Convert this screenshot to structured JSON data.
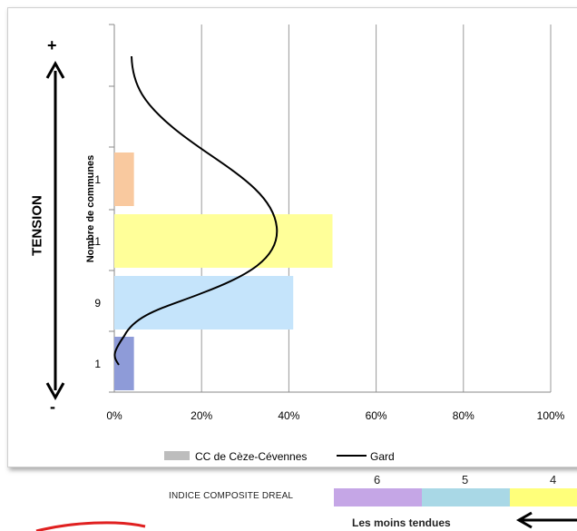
{
  "chart_data": {
    "type": "bar",
    "orientation": "horizontal",
    "categories": [
      "1",
      "11",
      "9",
      "1"
    ],
    "series": [
      {
        "name": "CC de Cèze-Cévennes",
        "values": [
          4.5,
          50,
          41,
          4.5
        ],
        "colors": [
          "#f9c99f",
          "#ffff99",
          "#c5e4fb",
          "#8e9bd8"
        ]
      },
      {
        "name": "Gard",
        "type": "line",
        "color": "#000000"
      }
    ],
    "ylabel": "Nombre de communes",
    "xlim": [
      0,
      100
    ],
    "xticks": [
      "0%",
      "20%",
      "40%",
      "60%",
      "80%",
      "100%"
    ],
    "grid": true,
    "legend": "bottom"
  },
  "side": {
    "title": "TENSION",
    "plus": "+",
    "minus": "-"
  },
  "indice": {
    "label": "INDICE COMPOSITE DREAL",
    "numbers": [
      "6",
      "5",
      "4"
    ],
    "colors": [
      "#c5a6e6",
      "#a9d8e6",
      "#ffff7a"
    ]
  },
  "footer": {
    "least_tense": "Les moins tendues"
  }
}
